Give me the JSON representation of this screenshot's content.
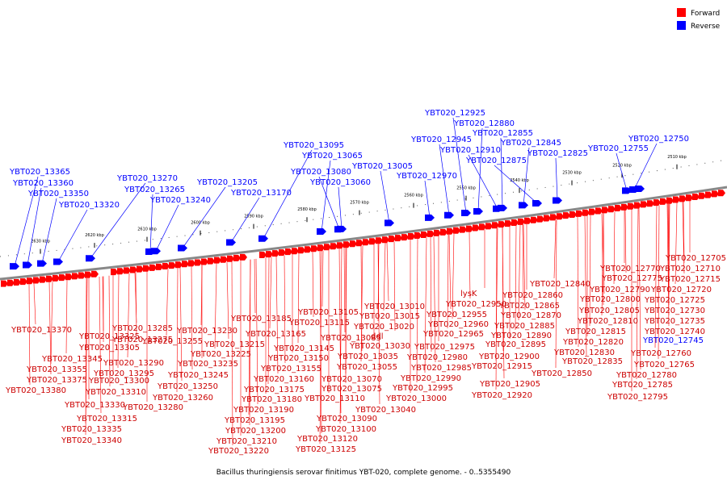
{
  "legend": [
    {
      "label": "Forward",
      "color": "#ff0000"
    },
    {
      "label": "Reverse",
      "color": "#0000ff"
    }
  ],
  "caption": "Bacillus thuringiensis serovar finitimus YBT-020, complete genome. - 0..5355490",
  "ticks": [
    "2630 kbp",
    "2620 kbp",
    "2610 kbp",
    "2600 kbp",
    "2590 kbp",
    "2580 kbp",
    "2570 kbp",
    "2560 kbp",
    "2550 kbp",
    "2540 kbp",
    "2530 kbp",
    "2520 kbp",
    "2510 kbp"
  ],
  "reverse_labels": [
    "YBT020_13365",
    "YBT020_13360",
    "YBT020_13350",
    "YBT020_13320",
    "YBT020_13270",
    "YBT020_13265",
    "YBT020_13240",
    "YBT020_13205",
    "YBT020_13170",
    "YBT020_13095",
    "YBT020_13065",
    "YBT020_13080",
    "YBT020_13060",
    "YBT020_13005",
    "YBT020_12970",
    "YBT020_12945",
    "YBT020_12925",
    "YBT020_12880",
    "YBT020_12910",
    "YBT020_12855",
    "YBT020_12845",
    "YBT020_12875",
    "YBT020_12825",
    "YBT020_12755",
    "YBT020_12750",
    "YBT020_12745"
  ],
  "forward_labels": [
    "YBT020_13370",
    "YBT020_13325",
    "YBT020_13305",
    "YBT020_13345",
    "YBT020_13355",
    "YBT020_13375",
    "YBT020_13380",
    "YBT020_13330",
    "YBT020_13335",
    "YBT020_13340",
    "YBT020_13315",
    "YBT020_13310",
    "YBT020_13300",
    "YBT020_13295",
    "YBT020_13290",
    "YBT020_13285",
    "YBT020_13275",
    "YBT020_13280",
    "YBT020_13260",
    "YBT020_13255",
    "YBT020_13250",
    "YBT020_13245",
    "YBT020_13235",
    "YBT020_13230",
    "YBT020_13225",
    "YBT020_13215",
    "YBT020_13220",
    "YBT020_13210",
    "YBT020_13200",
    "YBT020_13195",
    "YBT020_13190",
    "YBT020_13185",
    "YBT020_13180",
    "YBT020_13175",
    "YBT020_13165",
    "YBT020_13160",
    "YBT020_13155",
    "YBT020_13150",
    "YBT020_13145",
    "YBT020_13125",
    "YBT020_13120",
    "YBT020_13115",
    "YBT020_13110",
    "YBT020_13105",
    "YBT020_13100",
    "YBT020_13090",
    "YBT020_13085",
    "YBT020_13075",
    "YBT020_13070",
    "YBT020_13055",
    "YBT020_13040",
    "YBT020_13035",
    "YBT020_13030",
    "YBT020_13020",
    "YBT020_13015",
    "YBT020_13010",
    "ddl",
    "YBT020_13000",
    "YBT020_12995",
    "YBT020_12990",
    "YBT020_12985",
    "YBT020_12980",
    "YBT020_12975",
    "YBT020_12965",
    "YBT020_12960",
    "YBT020_12955",
    "YBT020_12950",
    "lysK",
    "YBT020_12920",
    "YBT020_12915",
    "YBT020_12905",
    "YBT020_12900",
    "YBT020_12895",
    "YBT020_12890",
    "YBT020_12885",
    "YBT020_12870",
    "YBT020_12865",
    "YBT020_12860",
    "YBT020_12850",
    "YBT020_12840",
    "YBT020_12835",
    "YBT020_12830",
    "YBT020_12820",
    "YBT020_12815",
    "YBT020_12810",
    "YBT020_12805",
    "YBT020_12800",
    "YBT020_12795",
    "YBT020_12790",
    "YBT020_12785",
    "YBT020_12780",
    "YBT020_12775",
    "YBT020_12770",
    "YBT020_12765",
    "YBT020_12760",
    "YBT020_12740",
    "YBT020_12735",
    "YBT020_12730",
    "YBT020_12725",
    "YBT020_12720",
    "YBT020_12715",
    "YBT020_12710",
    "YBT020_12705"
  ]
}
